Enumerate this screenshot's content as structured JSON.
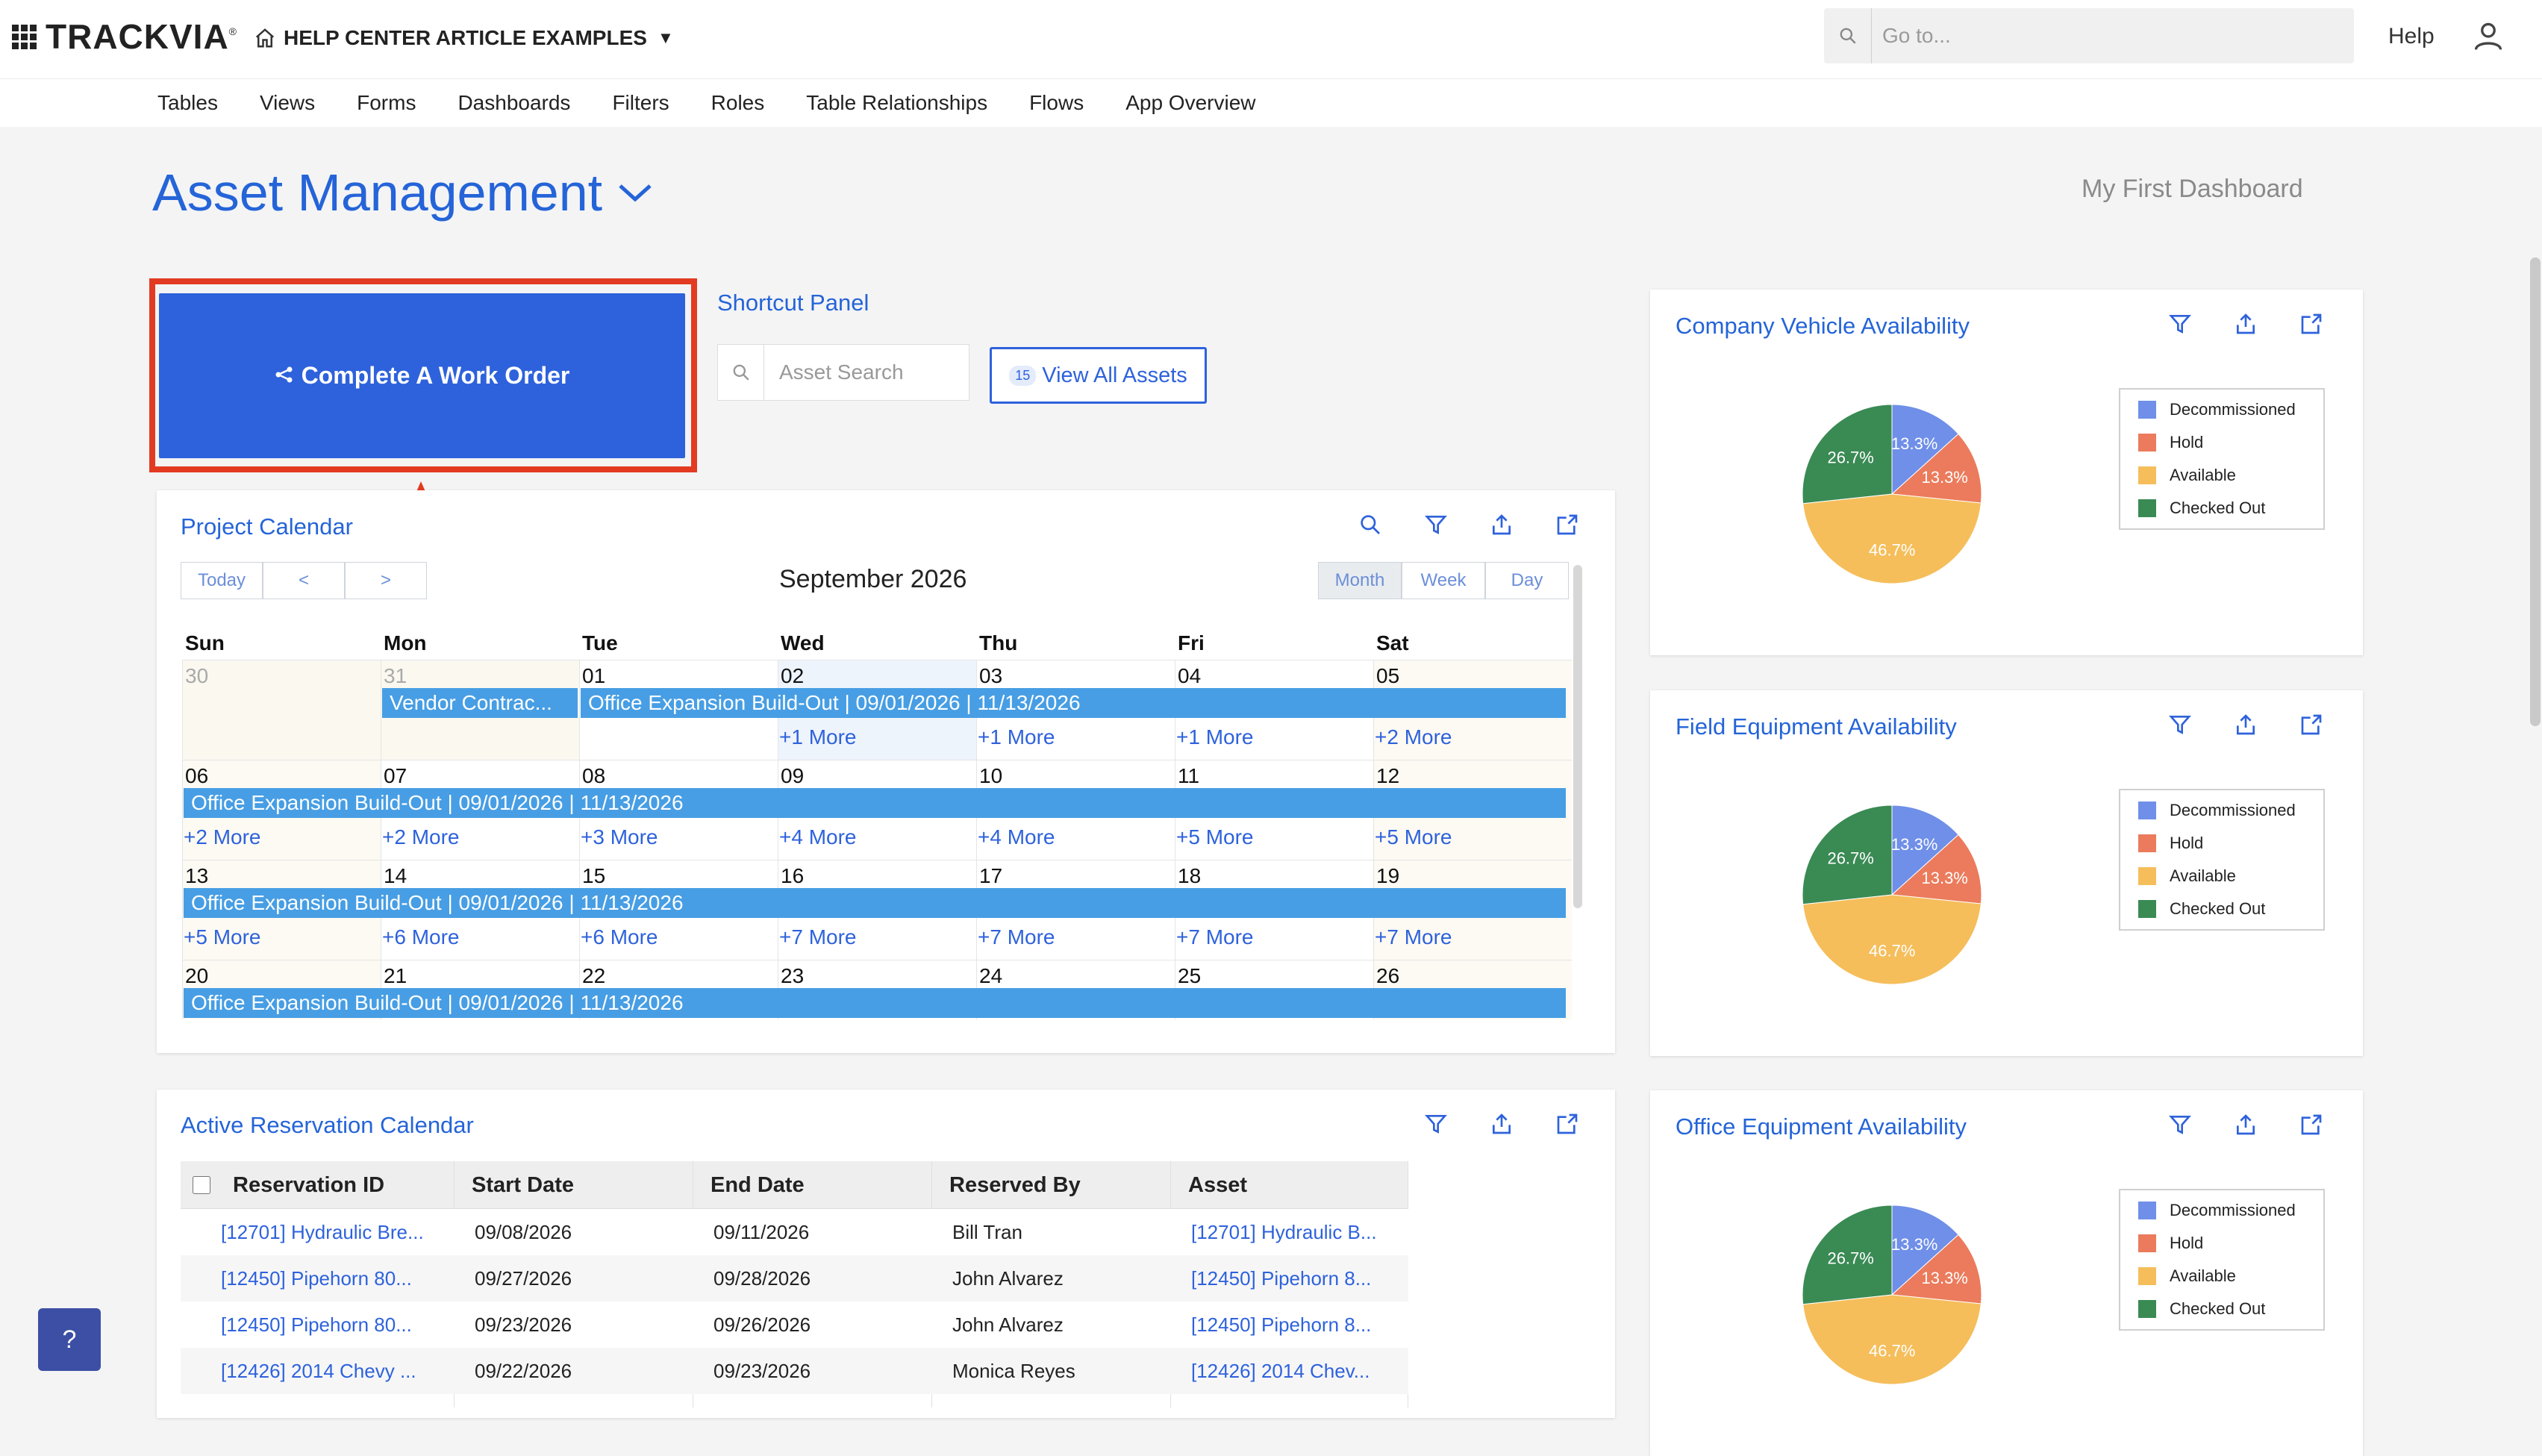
{
  "topbar": {
    "brand": "TRACKVIA",
    "app_name": "HELP CENTER ARTICLE EXAMPLES",
    "search_placeholder": "Go to...",
    "help_label": "Help"
  },
  "nav": [
    "Tables",
    "Views",
    "Forms",
    "Dashboards",
    "Filters",
    "Roles",
    "Table Relationships",
    "Flows",
    "App Overview"
  ],
  "page": {
    "title": "Asset Management",
    "dashboard_name": "My First Dashboard"
  },
  "work_order": {
    "label": "Complete A Work Order"
  },
  "shortcut_panel": {
    "title": "Shortcut Panel",
    "search_placeholder": "Asset Search",
    "view_all_count": "15",
    "view_all_label": "View All Assets"
  },
  "calendar": {
    "title": "Project Calendar",
    "nav": [
      "Today",
      "<",
      ">"
    ],
    "views": [
      "Month",
      "Week",
      "Day"
    ],
    "month_label": "September 2026",
    "weekdays": [
      "Sun",
      "Mon",
      "Tue",
      "Wed",
      "Thu",
      "Fri",
      "Sat"
    ],
    "weeks": [
      {
        "days": [
          "30",
          "31",
          "01",
          "02",
          "03",
          "04",
          "05"
        ],
        "more": [
          "",
          "",
          "",
          "+1 More",
          "+1 More",
          "+1 More",
          "+2 More"
        ]
      },
      {
        "days": [
          "06",
          "07",
          "08",
          "09",
          "10",
          "11",
          "12"
        ],
        "more": [
          "+2 More",
          "+2 More",
          "+3 More",
          "+4 More",
          "+4 More",
          "+5 More",
          "+5 More"
        ]
      },
      {
        "days": [
          "13",
          "14",
          "15",
          "16",
          "17",
          "18",
          "19"
        ],
        "more": [
          "+5 More",
          "+6 More",
          "+6 More",
          "+7 More",
          "+7 More",
          "+7 More",
          "+7 More"
        ]
      },
      {
        "days": [
          "20",
          "21",
          "22",
          "23",
          "24",
          "25",
          "26"
        ],
        "more": [
          "",
          "",
          "",
          "",
          "",
          "",
          ""
        ]
      }
    ],
    "event_vendor": "Vendor Contrac...",
    "event_office": "Office Expansion Build-Out | 09/01/2026 | 11/13/2026"
  },
  "reservations": {
    "title": "Active Reservation Calendar",
    "columns": [
      "Reservation ID",
      "Start Date",
      "End Date",
      "Reserved By",
      "Asset"
    ],
    "rows": [
      [
        "[12701] Hydraulic Bre...",
        "09/08/2026",
        "09/11/2026",
        "Bill Tran",
        "[12701] Hydraulic B..."
      ],
      [
        "[12450] Pipehorn 80...",
        "09/27/2026",
        "09/28/2026",
        "John Alvarez",
        "[12450] Pipehorn 8..."
      ],
      [
        "[12450] Pipehorn 80...",
        "09/23/2026",
        "09/26/2026",
        "John Alvarez",
        "[12450] Pipehorn 8..."
      ],
      [
        "[12426] 2014 Chevy ...",
        "09/22/2026",
        "09/23/2026",
        "Monica Reyes",
        "[12426] 2014 Chev..."
      ]
    ]
  },
  "legend_labels": [
    "Decommissioned",
    "Hold",
    "Available",
    "Checked Out"
  ],
  "colors": {
    "Decommissioned": "#6f8fe8",
    "Hold": "#eb7b5c",
    "Available": "#f5be5b",
    "Checked Out": "#3a8a54"
  },
  "chart_data": [
    {
      "type": "pie",
      "title": "Company Vehicle Availability",
      "categories": [
        "Decommissioned",
        "Hold",
        "Available",
        "Checked Out"
      ],
      "values": [
        13.3,
        13.3,
        46.7,
        26.7
      ],
      "labels": [
        "13.3%",
        "13.3%",
        "46.7%",
        "26.7%"
      ]
    },
    {
      "type": "pie",
      "title": "Field Equipment Availability",
      "categories": [
        "Decommissioned",
        "Hold",
        "Available",
        "Checked Out"
      ],
      "values": [
        13.3,
        13.3,
        46.7,
        26.7
      ],
      "labels": [
        "13.3%",
        "13.3%",
        "46.7%",
        "26.7%"
      ]
    },
    {
      "type": "pie",
      "title": "Office Equipment Availability",
      "categories": [
        "Decommissioned",
        "Hold",
        "Available",
        "Checked Out"
      ],
      "values": [
        13.3,
        13.3,
        46.7,
        26.7
      ],
      "labels": [
        "13.3%",
        "13.3%",
        "46.7%",
        "26.7%"
      ]
    }
  ],
  "help_fab": "?"
}
